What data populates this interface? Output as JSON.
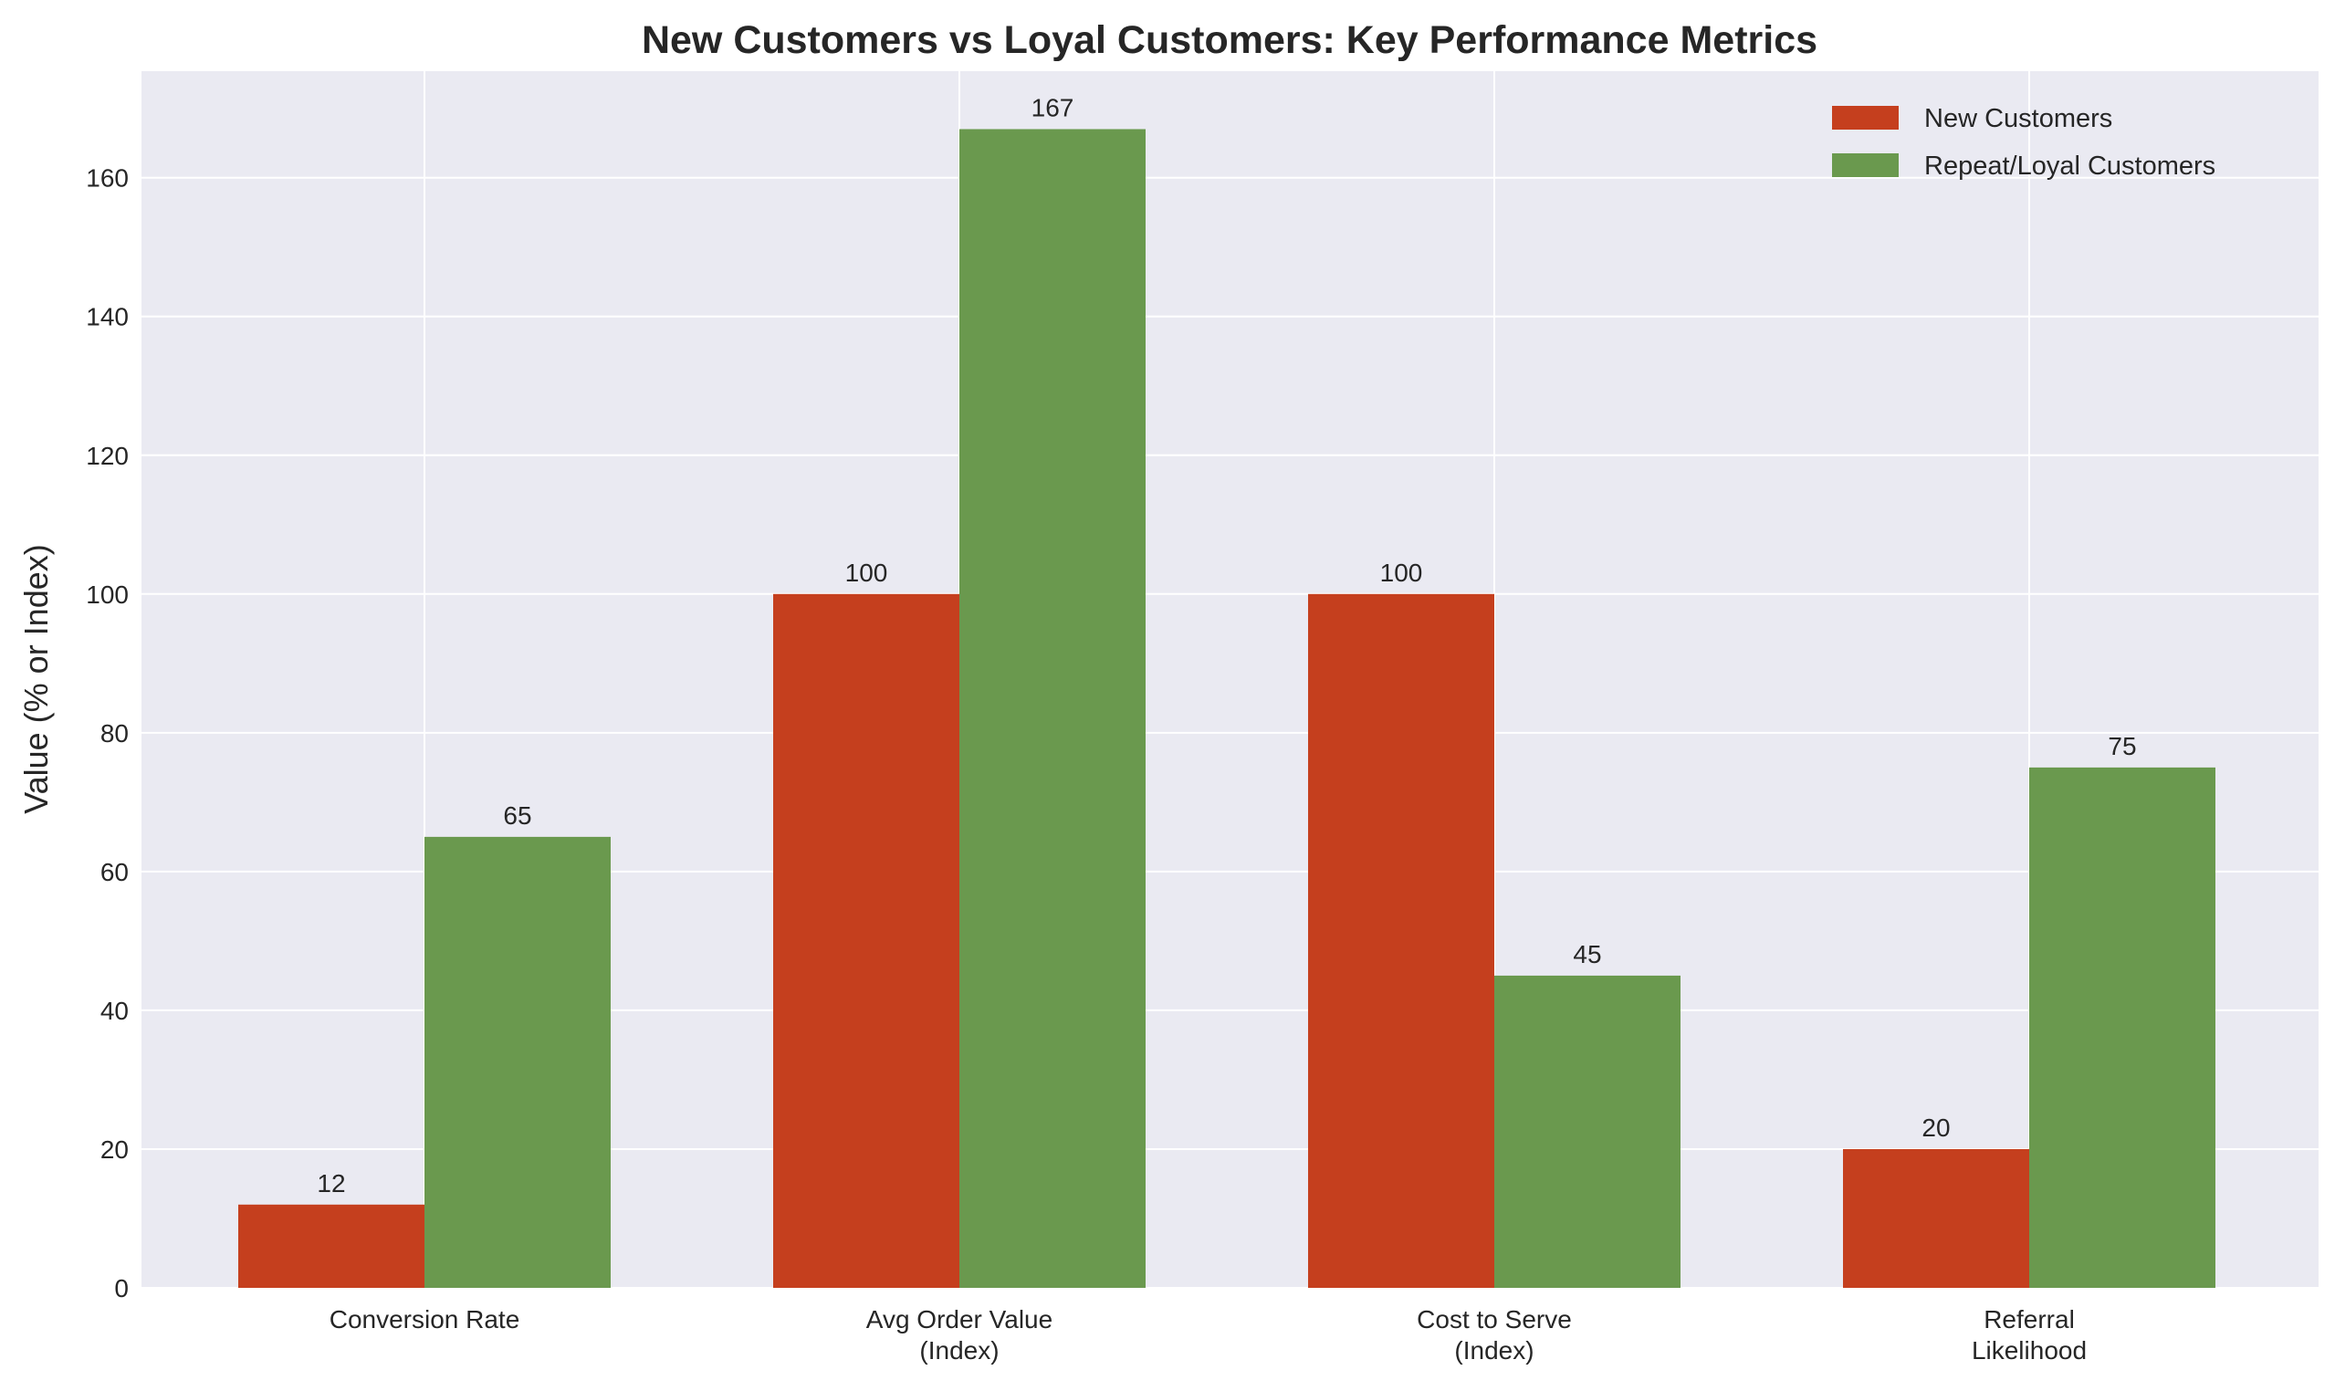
{
  "chart_data": {
    "type": "bar",
    "title": "New Customers vs Loyal Customers: Key Performance Metrics",
    "xlabel": "",
    "ylabel": "Value (% or Index)",
    "categories": [
      [
        "Conversion Rate"
      ],
      [
        "Avg Order Value",
        "(Index)"
      ],
      [
        "Cost to Serve",
        "(Index)"
      ],
      [
        "Referral",
        "Likelihood"
      ]
    ],
    "series": [
      {
        "name": "New Customers",
        "color": "#c53f1e",
        "values": [
          12,
          100,
          100,
          20
        ]
      },
      {
        "name": "Repeat/Loyal Customers",
        "color": "#6a994e",
        "values": [
          65,
          167,
          45,
          75
        ]
      }
    ],
    "ylim": [
      0,
      175.35
    ],
    "yticks": [
      0,
      20,
      40,
      60,
      80,
      100,
      120,
      140,
      160
    ],
    "grid": true,
    "legend": "top-right",
    "data_labels": true,
    "background": "#eaeaf2"
  }
}
